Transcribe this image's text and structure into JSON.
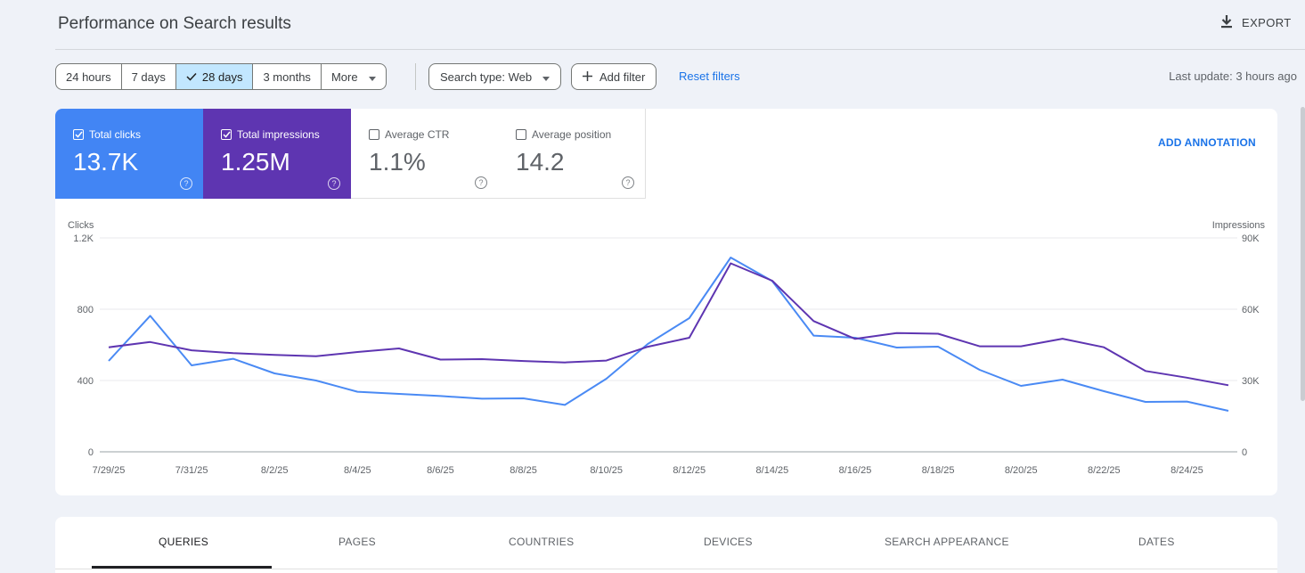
{
  "page": {
    "title": "Performance on Search results",
    "export_label": "EXPORT"
  },
  "filters": {
    "date_ranges": [
      "24 hours",
      "7 days",
      "28 days",
      "3 months",
      "More"
    ],
    "selected_range": "28 days",
    "search_type": "Search type: Web",
    "add_filter": "Add filter",
    "reset": "Reset filters",
    "last_update": "Last update: 3 hours ago"
  },
  "metrics": [
    {
      "label": "Total clicks",
      "value": "13.7K",
      "checked": true,
      "color": "#4285f4"
    },
    {
      "label": "Total impressions",
      "value": "1.25M",
      "checked": true,
      "color": "#5e35b1"
    },
    {
      "label": "Average CTR",
      "value": "1.1%",
      "checked": false
    },
    {
      "label": "Average position",
      "value": "14.2",
      "checked": false
    }
  ],
  "add_annotation": "ADD ANNOTATION",
  "chart_data": {
    "type": "line",
    "left_axis_label": "Clicks",
    "right_axis_label": "Impressions",
    "left_ticks": [
      "0",
      "400",
      "800",
      "1.2K"
    ],
    "right_ticks": [
      "0",
      "30K",
      "60K",
      "90K"
    ],
    "ylim_left": [
      0,
      1200
    ],
    "ylim_right": [
      0,
      90000
    ],
    "x_labels": [
      "7/29/25",
      "7/31/25",
      "8/2/25",
      "8/4/25",
      "8/6/25",
      "8/8/25",
      "8/10/25",
      "8/12/25",
      "8/14/25",
      "8/16/25",
      "8/18/25",
      "8/20/25",
      "8/22/25",
      "8/24/25"
    ],
    "x": [
      "7/29/25",
      "7/30/25",
      "7/31/25",
      "8/1/25",
      "8/2/25",
      "8/3/25",
      "8/4/25",
      "8/5/25",
      "8/6/25",
      "8/7/25",
      "8/8/25",
      "8/9/25",
      "8/10/25",
      "8/11/25",
      "8/12/25",
      "8/13/25",
      "8/14/25",
      "8/15/25",
      "8/16/25",
      "8/17/25",
      "8/18/25",
      "8/19/25",
      "8/20/25",
      "8/21/25",
      "8/22/25",
      "8/23/25",
      "8/24/25",
      "8/25/25"
    ],
    "series": [
      {
        "name": "Clicks",
        "axis": "left",
        "color": "#4a8af4",
        "values": [
          510,
          763,
          485,
          522,
          440,
          400,
          337,
          325,
          313,
          298,
          300,
          263,
          410,
          605,
          750,
          1090,
          958,
          652,
          640,
          585,
          590,
          460,
          370,
          405,
          340,
          280,
          282,
          230
        ]
      },
      {
        "name": "Impressions",
        "axis": "right",
        "color": "#5e35b1",
        "values": [
          44000,
          46200,
          42700,
          41500,
          40800,
          40200,
          42000,
          43500,
          38800,
          39000,
          38200,
          37600,
          38400,
          44200,
          48000,
          79300,
          72000,
          55000,
          47500,
          50000,
          49700,
          44400,
          44400,
          47600,
          44000,
          34000,
          31200,
          28000
        ]
      }
    ]
  },
  "tabs": [
    "QUERIES",
    "PAGES",
    "COUNTRIES",
    "DEVICES",
    "SEARCH APPEARANCE",
    "DATES"
  ]
}
